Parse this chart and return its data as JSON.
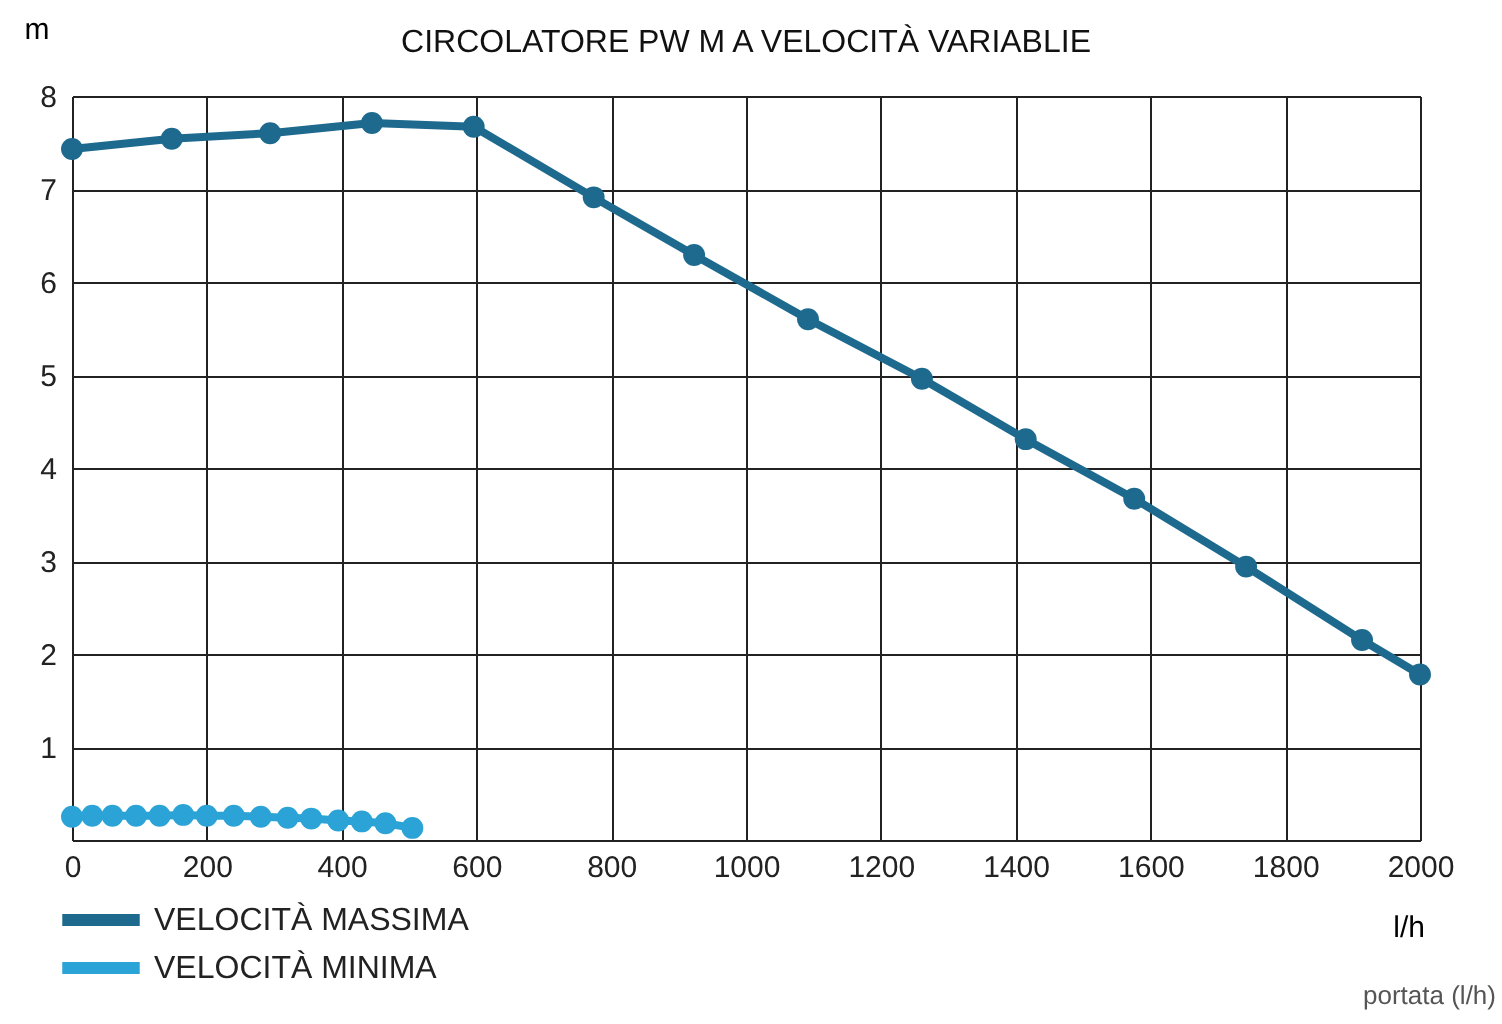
{
  "chart_data": {
    "type": "line",
    "title": "CIRCOLATORE PW M A VELOCITÀ VARIABLIE",
    "xlabel": "l/h",
    "ylabel": "m",
    "annotations": [
      "portata (l/h)"
    ],
    "series": [
      {
        "name": "VELOCITÀ  MASSIMA",
        "color": "#1d6a8e",
        "x": [
          0,
          148,
          294,
          445,
          596,
          774,
          923,
          1092,
          1261,
          1415,
          1576,
          1742,
          1914,
          2000
        ],
        "values": [
          7.43,
          7.54,
          7.6,
          7.71,
          7.67,
          6.91,
          6.29,
          5.6,
          4.96,
          4.31,
          3.67,
          2.94,
          2.15,
          1.78
        ]
      },
      {
        "name": "VELOCITÀ  MINIMA",
        "color": "#2ba3d6",
        "x": [
          0,
          30,
          60,
          95,
          130,
          165,
          200,
          240,
          280,
          320,
          355,
          395,
          430,
          465,
          505
        ],
        "values": [
          0.25,
          0.26,
          0.26,
          0.26,
          0.26,
          0.27,
          0.26,
          0.26,
          0.25,
          0.24,
          0.23,
          0.21,
          0.2,
          0.18,
          0.13
        ]
      }
    ],
    "xlim": [
      0,
      2000
    ],
    "xticks": [
      0,
      200,
      400,
      600,
      800,
      1000,
      1200,
      1400,
      1600,
      1800,
      2000
    ],
    "ylim": [
      0,
      8
    ],
    "yticks": [
      1,
      2,
      3,
      4,
      5,
      6,
      7,
      8
    ],
    "grid": true,
    "legend": "bottom left",
    "marker": "circle",
    "line_style": "solid"
  }
}
